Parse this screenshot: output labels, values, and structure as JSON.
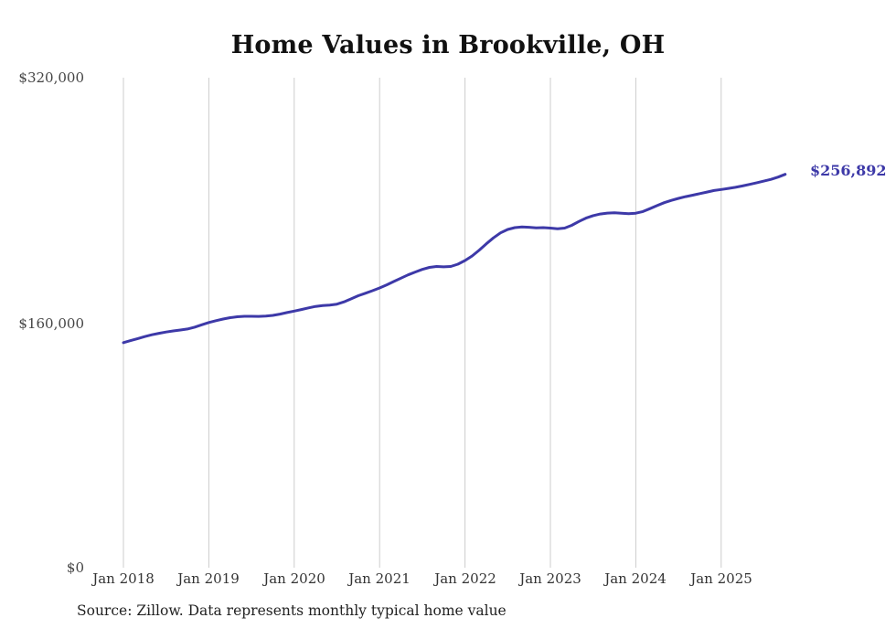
{
  "chart": {
    "title": "Home Values in Brookville, OH",
    "source": "Source: Zillow. Data represents monthly typical home value"
  },
  "chart_data": {
    "type": "line",
    "title": "Home Values in Brookville, OH",
    "xlabel": "",
    "ylabel": "",
    "ylim": [
      0,
      320000
    ],
    "grid": "vertical-only",
    "legend": "none",
    "line_color": "#3d39a8",
    "grid_color": "#cccccc",
    "end_label": "$256,892",
    "y_ticks": [
      "$320,000",
      "$160,000",
      "$0"
    ],
    "x_ticks": [
      "Jan 2018",
      "Jan 2019",
      "Jan 2020",
      "Jan 2021",
      "Jan 2022",
      "Jan 2023",
      "Jan 2024",
      "Jan 2025"
    ],
    "x_monthly_start": "Jan 2018",
    "x_monthly_end": "Oct 2025",
    "values": [
      147000,
      148300,
      149600,
      150900,
      152100,
      153100,
      153900,
      154600,
      155200,
      155900,
      157100,
      158600,
      160100,
      161300,
      162400,
      163300,
      163900,
      164200,
      164200,
      164100,
      164300,
      164800,
      165600,
      166600,
      167600,
      168600,
      169700,
      170600,
      171200,
      171500,
      172100,
      173600,
      175600,
      177600,
      179200,
      180900,
      182700,
      184700,
      186900,
      189100,
      191200,
      193100,
      194800,
      196100,
      196700,
      196500,
      196700,
      198200,
      200600,
      203600,
      207400,
      211500,
      215400,
      218700,
      220900,
      222100,
      222500,
      222300,
      222000,
      222100,
      221800,
      221300,
      221800,
      223600,
      226100,
      228300,
      229900,
      231000,
      231600,
      231800,
      231500,
      231200,
      231500,
      232600,
      234500,
      236500,
      238400,
      239900,
      241200,
      242300,
      243300,
      244300,
      245300,
      246300,
      247000,
      247700,
      248400,
      249300,
      250300,
      251400,
      252500,
      253600,
      255100,
      256892
    ]
  }
}
